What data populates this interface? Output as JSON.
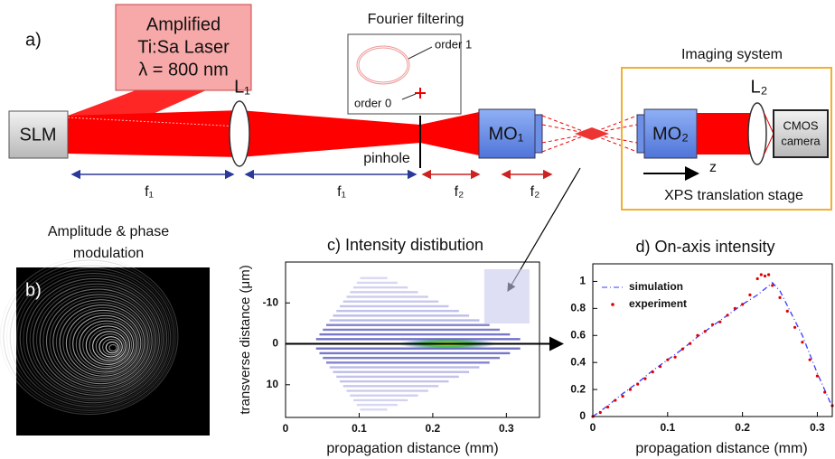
{
  "panel_a": {
    "label": "a)",
    "slm": "SLM",
    "laser": [
      "Amplified",
      "Ti:Sa Laser",
      "λ = 800 nm"
    ],
    "lens1": "L₁",
    "fourier_title": "Fourier filtering",
    "order1": "order 1",
    "order0": "order 0",
    "pinhole": "pinhole",
    "mo1": "MO₁",
    "imaging_title": "Imaging system",
    "lens2": "L₂",
    "mo2": "MO₂",
    "camera": [
      "CMOS",
      "camera"
    ],
    "z": "z",
    "stage": "XPS translation stage",
    "distances": [
      "f₁",
      "f₁",
      "f₂",
      "f₂"
    ]
  },
  "panel_b": {
    "label": "b)",
    "title": [
      "Amplitude & phase",
      "modulation"
    ]
  },
  "chart_data": [
    {
      "type": "heatmap",
      "title": "c) Intensity distibution",
      "xlabel": "propagation distance (mm)",
      "ylabel": "transverse distance (μm)",
      "xlim": [
        0,
        0.345
      ],
      "ylim": [
        -20,
        18
      ],
      "y_inverted": true,
      "xticks": [
        0,
        0.1,
        0.2,
        0.3
      ],
      "yticks": [
        -10,
        0,
        10
      ]
    },
    {
      "type": "line",
      "title": "d) On-axis intensity",
      "xlabel": "propagation distance (mm)",
      "xlim": [
        0,
        0.32
      ],
      "ylim": [
        0,
        1.13
      ],
      "xticks": [
        0,
        0.1,
        0.2,
        0.3
      ],
      "yticks": [
        0,
        0.2,
        0.4,
        0.6,
        0.8,
        1
      ],
      "legend": "upper left",
      "series": [
        {
          "name": "simulation",
          "color": "#3a3aff",
          "style": "dashed",
          "x": [
            0,
            0.02,
            0.04,
            0.06,
            0.08,
            0.1,
            0.12,
            0.14,
            0.16,
            0.18,
            0.2,
            0.22,
            0.24,
            0.25,
            0.26,
            0.28,
            0.3,
            0.32
          ],
          "values": [
            0,
            0.08,
            0.17,
            0.25,
            0.34,
            0.42,
            0.5,
            0.59,
            0.67,
            0.75,
            0.83,
            0.9,
            0.99,
            0.93,
            0.82,
            0.6,
            0.32,
            0.07
          ]
        },
        {
          "name": "experiment",
          "color": "#e00000",
          "style": "points",
          "x": [
            0,
            0.01,
            0.02,
            0.03,
            0.04,
            0.05,
            0.06,
            0.07,
            0.08,
            0.09,
            0.1,
            0.11,
            0.12,
            0.13,
            0.14,
            0.15,
            0.16,
            0.17,
            0.18,
            0.19,
            0.2,
            0.21,
            0.22,
            0.225,
            0.23,
            0.235,
            0.24,
            0.25,
            0.26,
            0.27,
            0.28,
            0.29,
            0.3,
            0.31,
            0.32
          ],
          "values": [
            0,
            0.03,
            0.07,
            0.12,
            0.15,
            0.2,
            0.24,
            0.28,
            0.33,
            0.37,
            0.42,
            0.44,
            0.5,
            0.54,
            0.6,
            0.63,
            0.68,
            0.7,
            0.75,
            0.8,
            0.83,
            0.9,
            1.02,
            1.05,
            1.04,
            1.05,
            0.97,
            0.88,
            0.78,
            0.66,
            0.55,
            0.42,
            0.3,
            0.18,
            0.08
          ]
        }
      ]
    }
  ]
}
